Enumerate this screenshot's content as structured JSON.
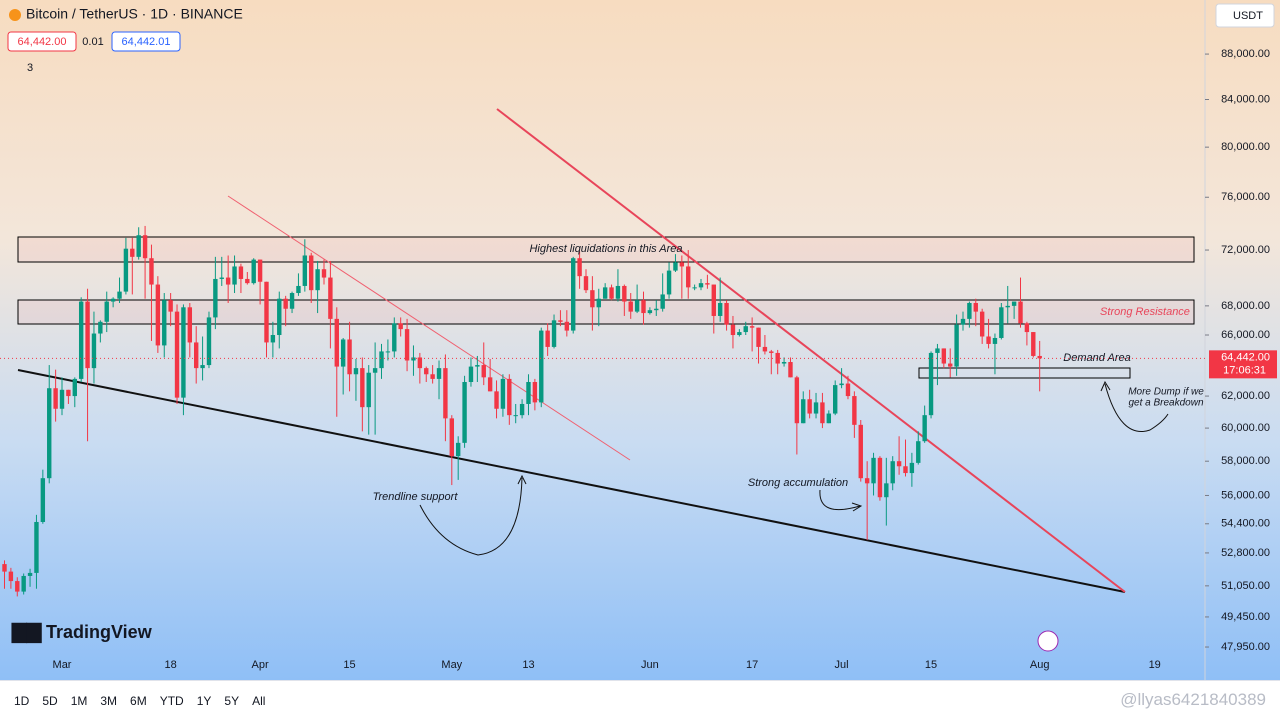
{
  "header": {
    "symbol": "Bitcoin / TetherUS · 1D · BINANCE",
    "bid": "64,442.00",
    "spread": "0.01",
    "ask": "64,442.01",
    "indicators": "3",
    "currency": "USDT"
  },
  "chart_data": {
    "type": "candlestick",
    "log_scale": true,
    "up_color": "#089981",
    "down_color": "#f23645",
    "current_price": {
      "value": 64442,
      "label": "64,442.00"
    },
    "countdown": "17:06:31",
    "ylim": [
      47560,
      93010
    ],
    "yticks": [
      {
        "value": 88000,
        "label": "88,000.00"
      },
      {
        "value": 84000,
        "label": "84,000.00"
      },
      {
        "value": 80000,
        "label": "80,000.00"
      },
      {
        "value": 76000,
        "label": "76,000.00"
      },
      {
        "value": 72000,
        "label": "72,000.00"
      },
      {
        "value": 68000,
        "label": "68,000.00"
      },
      {
        "value": 66000,
        "label": "66,000.00"
      },
      {
        "value": 62000,
        "label": "62,000.00"
      },
      {
        "value": 60000,
        "label": "60,000.00"
      },
      {
        "value": 58000,
        "label": "58,000.00"
      },
      {
        "value": 56000,
        "label": "56,000.00"
      },
      {
        "value": 54400,
        "label": "54,400.00"
      },
      {
        "value": 52800,
        "label": "52,800.00"
      },
      {
        "value": 51050,
        "label": "51,050.00"
      },
      {
        "value": 49450,
        "label": "49,450.00"
      },
      {
        "value": 47950,
        "label": "47,950.00"
      }
    ],
    "categories": [
      null,
      null,
      null,
      null,
      null,
      null,
      null,
      null,
      null,
      "Mar",
      null,
      null,
      null,
      null,
      null,
      null,
      null,
      null,
      null,
      null,
      null,
      null,
      null,
      null,
      null,
      null,
      "18",
      null,
      null,
      null,
      null,
      null,
      null,
      null,
      null,
      null,
      null,
      null,
      null,
      null,
      "Apr",
      null,
      null,
      null,
      null,
      null,
      null,
      null,
      null,
      null,
      null,
      null,
      null,
      null,
      "15",
      null,
      null,
      null,
      null,
      null,
      null,
      null,
      null,
      null,
      null,
      null,
      null,
      null,
      null,
      null,
      "May",
      null,
      null,
      null,
      null,
      null,
      null,
      null,
      null,
      null,
      null,
      null,
      "13",
      null,
      null,
      null,
      null,
      null,
      null,
      null,
      null,
      null,
      null,
      null,
      null,
      null,
      null,
      null,
      null,
      null,
      null,
      "Jun",
      null,
      null,
      null,
      null,
      null,
      null,
      null,
      null,
      null,
      null,
      null,
      null,
      null,
      null,
      null,
      "17",
      null,
      null,
      null,
      null,
      null,
      null,
      null,
      null,
      null,
      null,
      null,
      null,
      null,
      "Jul",
      null,
      null,
      null,
      null,
      null,
      null,
      null,
      null,
      null,
      null,
      null,
      null,
      null,
      "15",
      null,
      null,
      null,
      null,
      null,
      null,
      null,
      null,
      null,
      null,
      null,
      null,
      null,
      null,
      null,
      null,
      "Aug",
      null,
      null,
      null,
      null,
      null,
      null,
      null,
      null,
      null,
      null,
      null,
      null,
      null,
      null,
      null,
      null,
      null,
      "19"
    ],
    "values": [
      [
        52200,
        52400,
        50900,
        51800
      ],
      [
        51800,
        52000,
        50900,
        51300
      ],
      [
        51300,
        51500,
        50500,
        50750
      ],
      [
        50750,
        51700,
        50600,
        51570
      ],
      [
        51570,
        51950,
        51000,
        51730
      ],
      [
        51730,
        54900,
        50900,
        54500
      ],
      [
        54500,
        57500,
        54400,
        57000
      ],
      [
        57000,
        64000,
        56700,
        62500
      ],
      [
        62500,
        63700,
        60400,
        61200
      ],
      [
        61200,
        63200,
        60800,
        62400
      ],
      [
        62400,
        62400,
        61500,
        62000
      ],
      [
        62000,
        63200,
        61300,
        63100
      ],
      [
        63100,
        68600,
        62900,
        68300
      ],
      [
        68300,
        69200,
        59200,
        63800
      ],
      [
        63800,
        67600,
        62800,
        66100
      ],
      [
        66100,
        67000,
        65500,
        66900
      ],
      [
        66900,
        69000,
        66200,
        68300
      ],
      [
        68300,
        68600,
        67900,
        68500
      ],
      [
        68500,
        70000,
        68200,
        69000
      ],
      [
        69000,
        72900,
        68800,
        72100
      ],
      [
        72100,
        72900,
        68800,
        71500
      ],
      [
        71500,
        73700,
        71300,
        73100
      ],
      [
        73100,
        73800,
        68500,
        71400
      ],
      [
        71400,
        72400,
        65600,
        69500
      ],
      [
        69500,
        70100,
        64800,
        65300
      ],
      [
        65300,
        68900,
        64500,
        68400
      ],
      [
        68400,
        68900,
        66600,
        67600
      ],
      [
        67600,
        68100,
        61500,
        61900
      ],
      [
        61900,
        68100,
        60800,
        67900
      ],
      [
        67900,
        68200,
        64500,
        65500
      ],
      [
        65500,
        66600,
        62800,
        63800
      ],
      [
        63800,
        65900,
        63000,
        64000
      ],
      [
        64000,
        67600,
        63800,
        67200
      ],
      [
        67200,
        71500,
        66400,
        69900
      ],
      [
        69900,
        71500,
        69400,
        70000
      ],
      [
        70000,
        71600,
        68200,
        69500
      ],
      [
        69500,
        71600,
        68900,
        70800
      ],
      [
        70800,
        71000,
        68900,
        69900
      ],
      [
        69900,
        70400,
        69500,
        69600
      ],
      [
        69600,
        71400,
        69500,
        71300
      ],
      [
        71300,
        71300,
        68100,
        69700
      ],
      [
        69700,
        69700,
        64500,
        65500
      ],
      [
        65500,
        66900,
        64500,
        66000
      ],
      [
        66000,
        69000,
        65100,
        68500
      ],
      [
        68500,
        68700,
        66600,
        67800
      ],
      [
        67800,
        69000,
        67500,
        68900
      ],
      [
        68900,
        70300,
        68700,
        69400
      ],
      [
        69400,
        72800,
        69000,
        71600
      ],
      [
        71600,
        71800,
        68200,
        69100
      ],
      [
        69100,
        71200,
        67500,
        70600
      ],
      [
        70600,
        71300,
        69500,
        70000
      ],
      [
        70000,
        71200,
        65100,
        67100
      ],
      [
        67100,
        67900,
        60700,
        63900
      ],
      [
        63900,
        65800,
        62100,
        65700
      ],
      [
        65700,
        66900,
        62300,
        63400
      ],
      [
        63400,
        64400,
        61700,
        63800
      ],
      [
        63800,
        64500,
        59800,
        61300
      ],
      [
        61300,
        64000,
        59600,
        63500
      ],
      [
        63500,
        65500,
        59600,
        63800
      ],
      [
        63800,
        65400,
        63100,
        64900
      ],
      [
        64900,
        65700,
        64300,
        64900
      ],
      [
        64900,
        67200,
        64500,
        66800
      ],
      [
        66800,
        67200,
        65900,
        66400
      ],
      [
        66400,
        67100,
        63600,
        64300
      ],
      [
        64300,
        65300,
        63300,
        64500
      ],
      [
        64500,
        64800,
        62800,
        63800
      ],
      [
        63800,
        63900,
        62900,
        63400
      ],
      [
        63400,
        64000,
        62800,
        63100
      ],
      [
        63100,
        64300,
        61800,
        63800
      ],
      [
        63800,
        64700,
        59200,
        60600
      ],
      [
        60600,
        60800,
        56600,
        58300
      ],
      [
        58300,
        59500,
        56900,
        59100
      ],
      [
        59100,
        63300,
        58800,
        62900
      ],
      [
        62900,
        64500,
        62600,
        63900
      ],
      [
        63900,
        64600,
        62900,
        64000
      ],
      [
        64000,
        65500,
        62700,
        63200
      ],
      [
        63200,
        64400,
        62300,
        62300
      ],
      [
        62300,
        63000,
        60600,
        61200
      ],
      [
        61200,
        63400,
        60700,
        63100
      ],
      [
        63100,
        63400,
        60200,
        60800
      ],
      [
        60800,
        61500,
        60300,
        60800
      ],
      [
        60800,
        61800,
        60600,
        61500
      ],
      [
        61500,
        63400,
        60800,
        62900
      ],
      [
        62900,
        63100,
        61100,
        61600
      ],
      [
        61600,
        66500,
        61300,
        66300
      ],
      [
        66300,
        66800,
        64600,
        65200
      ],
      [
        65200,
        67400,
        65100,
        67000
      ],
      [
        67000,
        67700,
        66600,
        66900
      ],
      [
        66900,
        67700,
        65900,
        66300
      ],
      [
        66300,
        71500,
        66100,
        71400
      ],
      [
        71400,
        71900,
        69200,
        70100
      ],
      [
        70100,
        70600,
        68900,
        69100
      ],
      [
        69100,
        70100,
        66300,
        67900
      ],
      [
        67900,
        69200,
        66600,
        68500
      ],
      [
        68500,
        69600,
        68500,
        69300
      ],
      [
        69300,
        69500,
        68400,
        68500
      ],
      [
        68500,
        70600,
        68300,
        69400
      ],
      [
        69400,
        69500,
        67300,
        68300
      ],
      [
        68300,
        68900,
        67100,
        67600
      ],
      [
        67600,
        69500,
        67500,
        68400
      ],
      [
        68400,
        69000,
        66700,
        67500
      ],
      [
        67500,
        67900,
        67400,
        67700
      ],
      [
        67700,
        68400,
        67300,
        67800
      ],
      [
        67800,
        70300,
        67600,
        68800
      ],
      [
        68800,
        71100,
        68500,
        70500
      ],
      [
        70500,
        71700,
        70400,
        71100
      ],
      [
        71100,
        71600,
        68500,
        70800
      ],
      [
        70800,
        72000,
        68500,
        69300
      ],
      [
        69300,
        69500,
        69100,
        69300
      ],
      [
        69300,
        69900,
        69100,
        69600
      ],
      [
        69600,
        70200,
        69200,
        69500
      ],
      [
        69500,
        69500,
        66100,
        67300
      ],
      [
        67300,
        70000,
        66900,
        68200
      ],
      [
        68200,
        68400,
        66300,
        66700
      ],
      [
        66700,
        67300,
        65100,
        66000
      ],
      [
        66000,
        66400,
        65900,
        66200
      ],
      [
        66200,
        66900,
        66000,
        66600
      ],
      [
        66600,
        67200,
        64900,
        66500
      ],
      [
        66500,
        66500,
        64100,
        65200
      ],
      [
        65200,
        66000,
        64700,
        64900
      ],
      [
        64900,
        65000,
        63400,
        64800
      ],
      [
        64800,
        65000,
        63400,
        64100
      ],
      [
        64100,
        64500,
        63900,
        64200
      ],
      [
        64200,
        64500,
        63200,
        63200
      ],
      [
        63200,
        63300,
        58400,
        60300
      ],
      [
        60300,
        62300,
        60300,
        61800
      ],
      [
        61800,
        62400,
        60600,
        60900
      ],
      [
        60900,
        62200,
        60600,
        61600
      ],
      [
        61600,
        62200,
        60000,
        60300
      ],
      [
        60300,
        61100,
        60300,
        60900
      ],
      [
        60900,
        63000,
        60800,
        62700
      ],
      [
        62700,
        63800,
        62500,
        62800
      ],
      [
        62800,
        63300,
        61800,
        62000
      ],
      [
        62000,
        62300,
        59400,
        60200
      ],
      [
        60200,
        60500,
        56800,
        57000
      ],
      [
        57000,
        58000,
        53500,
        56700
      ],
      [
        56700,
        58500,
        56000,
        58200
      ],
      [
        58200,
        58300,
        55700,
        55900
      ],
      [
        55900,
        58200,
        54300,
        56700
      ],
      [
        56700,
        58300,
        56300,
        58000
      ],
      [
        58000,
        59500,
        57200,
        57700
      ],
      [
        57700,
        59300,
        57100,
        57300
      ],
      [
        57300,
        58500,
        56500,
        57900
      ],
      [
        57900,
        59800,
        57800,
        59200
      ],
      [
        59200,
        61400,
        59100,
        60800
      ],
      [
        60800,
        64900,
        60600,
        64800
      ],
      [
        64800,
        65400,
        62700,
        65100
      ],
      [
        65100,
        65100,
        63800,
        64100
      ],
      [
        64100,
        65100,
        63200,
        63900
      ],
      [
        63900,
        67400,
        63300,
        66700
      ],
      [
        66700,
        67600,
        66300,
        67100
      ],
      [
        67100,
        68300,
        66500,
        68200
      ],
      [
        68200,
        68500,
        66600,
        67600
      ],
      [
        67600,
        67800,
        65400,
        65900
      ],
      [
        65900,
        67100,
        65100,
        65400
      ],
      [
        65400,
        66100,
        63400,
        65800
      ],
      [
        65800,
        68200,
        65700,
        67900
      ],
      [
        67900,
        69400,
        66800,
        68000
      ],
      [
        68000,
        68300,
        67100,
        68300
      ],
      [
        68300,
        70000,
        66500,
        66800
      ],
      [
        66800,
        66900,
        65300,
        66200
      ],
      [
        66200,
        66200,
        64500,
        64600
      ],
      [
        64600,
        65600,
        62300,
        64442
      ],
      null,
      null,
      null,
      null,
      null,
      null,
      null,
      null,
      null,
      null,
      null,
      null,
      null,
      null,
      null,
      null,
      null,
      null
    ]
  },
  "annotations": {
    "liquidations": "Highest liquidations in this Area",
    "resistance": "Strong Resistance",
    "demand": "Demand Area",
    "more_dump": [
      "More Dump if we",
      "get a Breakdown"
    ],
    "trendline": "Trendline support",
    "accumulation": "Strong accumulation"
  },
  "branding": "TradingView",
  "toolbar": {
    "ranges": [
      "1D",
      "5D",
      "1M",
      "3M",
      "6M",
      "YTD",
      "1Y",
      "5Y",
      "All"
    ],
    "watermark": "@llyas6421840389"
  }
}
